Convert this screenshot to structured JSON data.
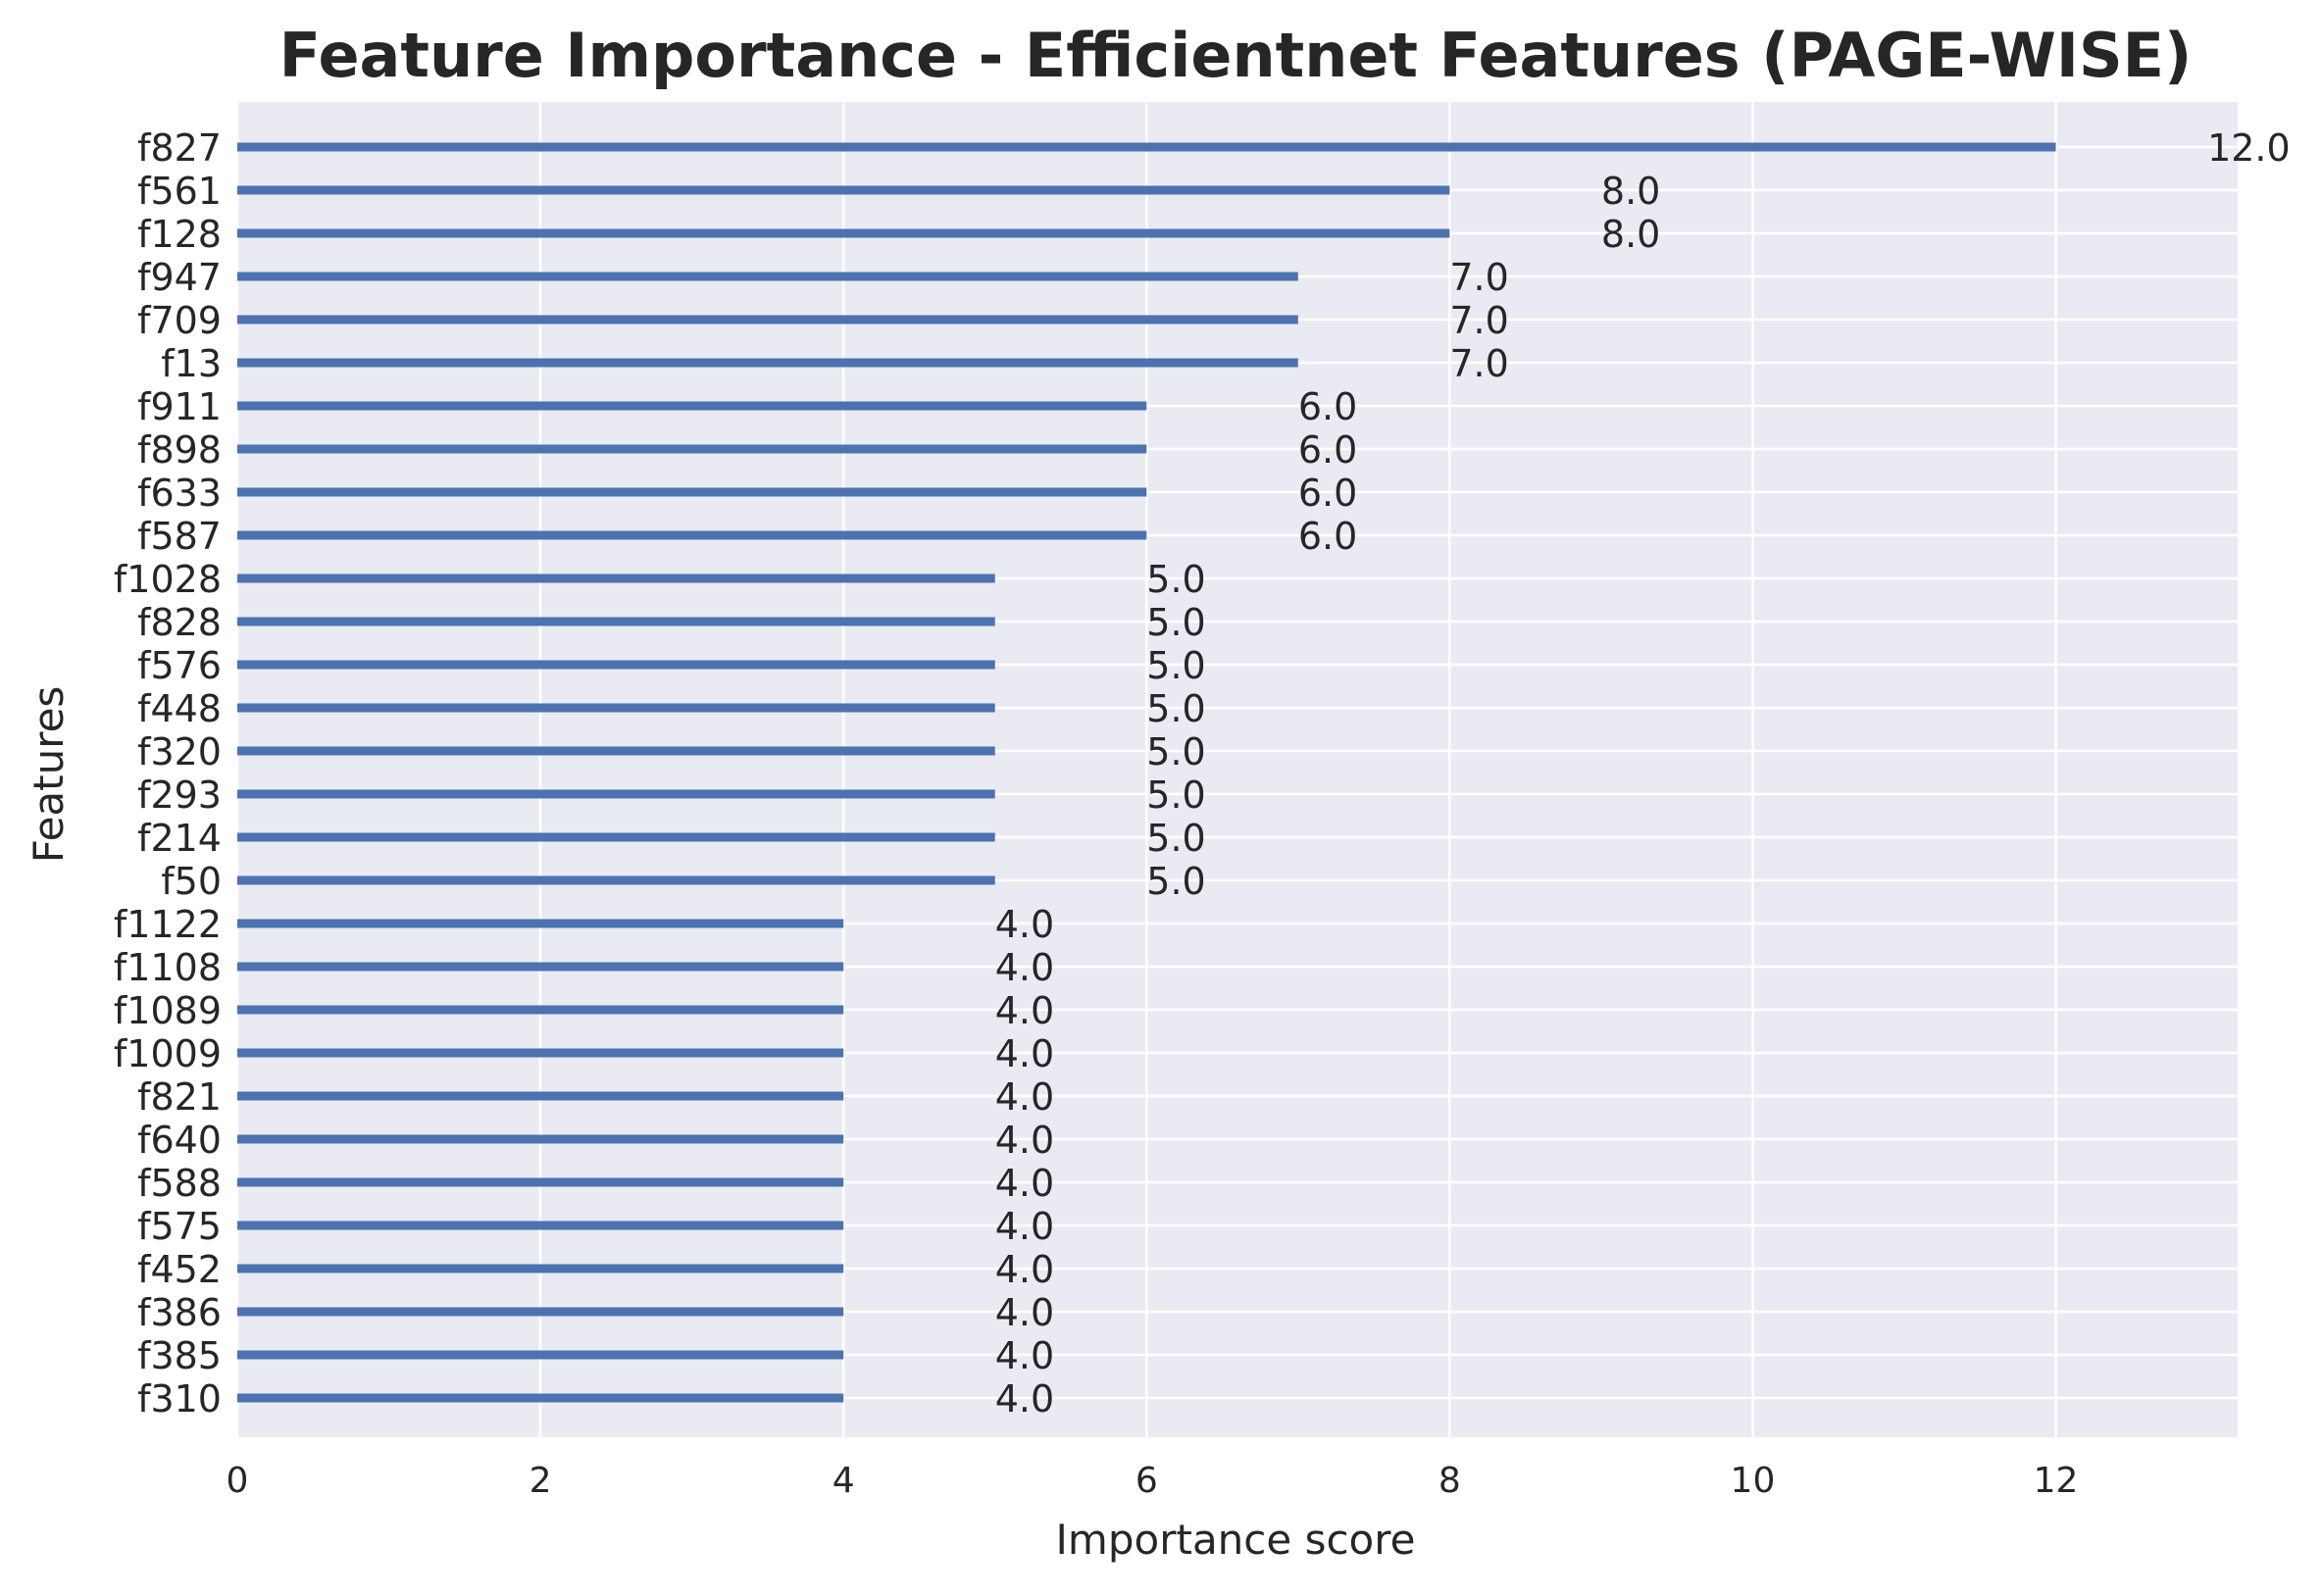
{
  "chart_data": {
    "type": "bar",
    "orientation": "horizontal",
    "title": "Feature Importance - Efficientnet Features (PAGE-WISE)",
    "xlabel": "Importance score",
    "ylabel": "Features",
    "xlim": [
      0,
      13.2
    ],
    "xticks": [
      0,
      2,
      4,
      6,
      8,
      10,
      12
    ],
    "grid": true,
    "legend": "none",
    "bar_color": "#4c72b0",
    "background_color": "#eaeaf2",
    "categories": [
      "f827",
      "f561",
      "f128",
      "f947",
      "f709",
      "f13",
      "f911",
      "f898",
      "f633",
      "f587",
      "f1028",
      "f828",
      "f576",
      "f448",
      "f320",
      "f293",
      "f214",
      "f50",
      "f1122",
      "f1108",
      "f1089",
      "f1009",
      "f821",
      "f640",
      "f588",
      "f575",
      "f452",
      "f386",
      "f385",
      "f310"
    ],
    "values": [
      12,
      8,
      8,
      7,
      7,
      7,
      6,
      6,
      6,
      6,
      5,
      5,
      5,
      5,
      5,
      5,
      5,
      5,
      4,
      4,
      4,
      4,
      4,
      4,
      4,
      4,
      4,
      4,
      4,
      4
    ],
    "data_labels": [
      "12.0",
      "8.0",
      "8.0",
      "7.0",
      "7.0",
      "7.0",
      "6.0",
      "6.0",
      "6.0",
      "6.0",
      "5.0",
      "5.0",
      "5.0",
      "5.0",
      "5.0",
      "5.0",
      "5.0",
      "5.0",
      "4.0",
      "4.0",
      "4.0",
      "4.0",
      "4.0",
      "4.0",
      "4.0",
      "4.0",
      "4.0",
      "4.0",
      "4.0",
      "4.0"
    ]
  }
}
